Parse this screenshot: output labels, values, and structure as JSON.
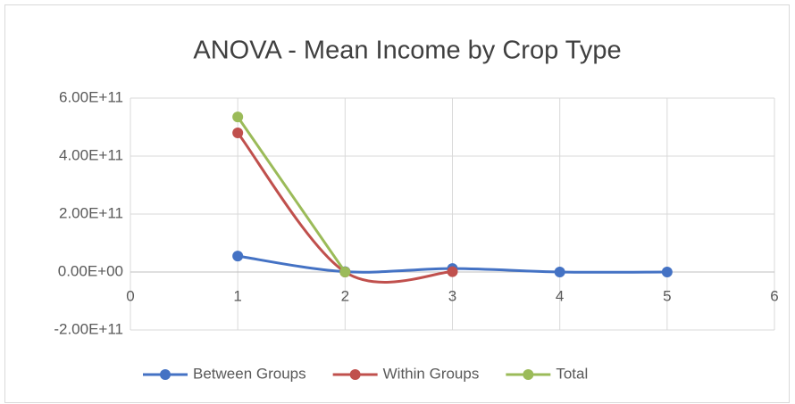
{
  "chart_data": {
    "type": "scatter-smooth",
    "title": "ANOVA - Mean Income by Crop Type",
    "series": [
      {
        "name": "Between Groups",
        "color": "#4472c4",
        "x": [
          1,
          2,
          3,
          4,
          5
        ],
        "values": [
          55000000000,
          1000000000,
          12000000000,
          0,
          0
        ]
      },
      {
        "name": "Within Groups",
        "color": "#c0504d",
        "x": [
          1,
          2,
          3
        ],
        "values": [
          480000000000,
          0,
          1000000000
        ]
      },
      {
        "name": "Total",
        "color": "#9bbb59",
        "x": [
          1,
          2
        ],
        "values": [
          535000000000,
          0
        ]
      }
    ],
    "xlim": [
      0,
      6
    ],
    "xticks": [
      0,
      1,
      2,
      3,
      4,
      5,
      6
    ],
    "ylim": [
      -200000000000,
      600000000000
    ],
    "yticks": [
      {
        "value": -200000000000,
        "label": "-2.00E+11"
      },
      {
        "value": 0,
        "label": "0.00E+00"
      },
      {
        "value": 200000000000,
        "label": "2.00E+11"
      },
      {
        "value": 400000000000,
        "label": "4.00E+11"
      },
      {
        "value": 600000000000,
        "label": "6.00E+11"
      }
    ],
    "grid": true,
    "legend": "bottom"
  }
}
